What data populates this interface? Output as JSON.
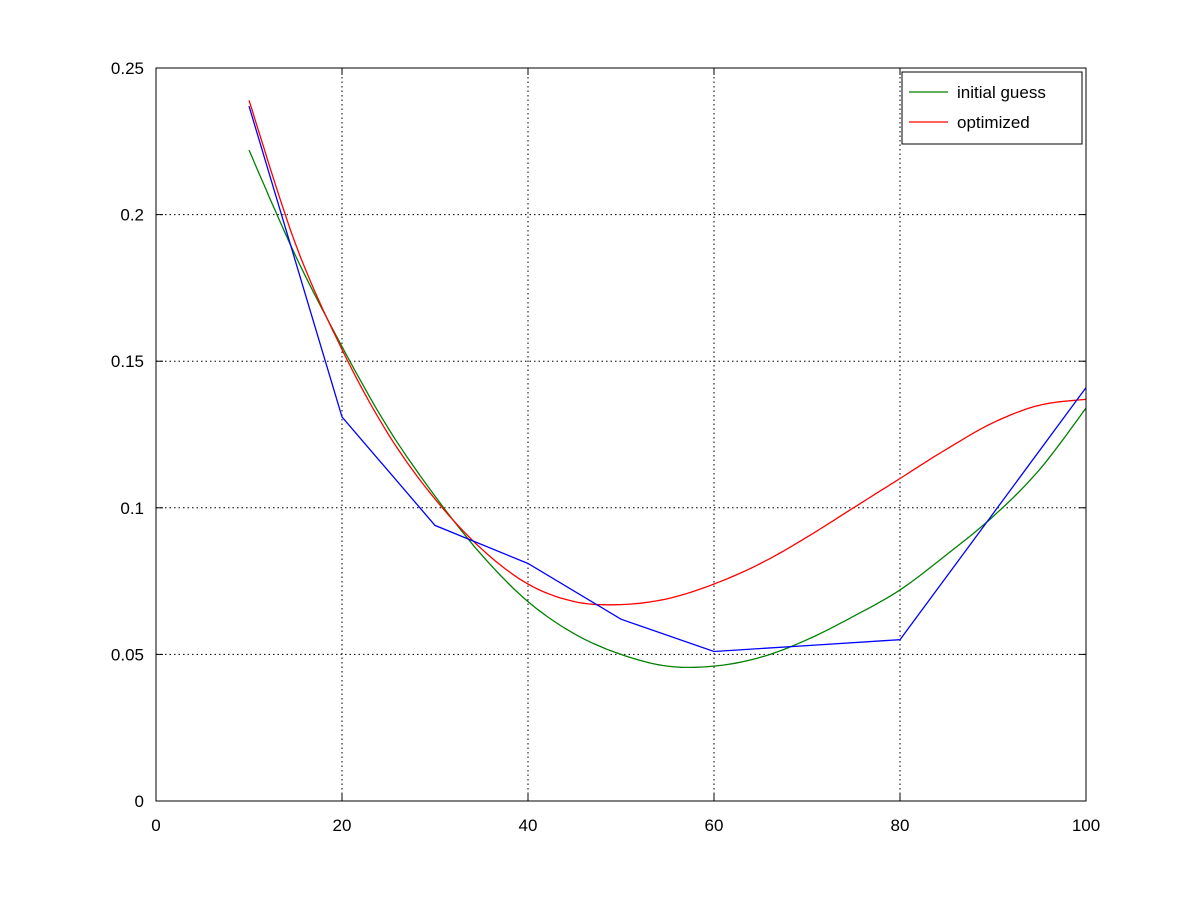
{
  "chart_data": {
    "type": "line",
    "xlim": [
      0,
      100
    ],
    "ylim": [
      0,
      0.25
    ],
    "x_ticks": [
      0,
      20,
      40,
      60,
      80,
      100
    ],
    "y_ticks": [
      0,
      0.05,
      0.1,
      0.15,
      0.2,
      0.25
    ],
    "x_tick_labels": [
      "0",
      "20",
      "40",
      "60",
      "80",
      "100"
    ],
    "y_tick_labels": [
      "0",
      "0.05",
      "0.1",
      "0.15",
      "0.2",
      "0.25"
    ],
    "grid": true,
    "legend_position": "top-right",
    "series": [
      {
        "name": "initial guess",
        "color": "#008000",
        "x": [
          10,
          15,
          20,
          25,
          30,
          35,
          40,
          45,
          50,
          55,
          60,
          65,
          70,
          75,
          80,
          85,
          90,
          95,
          100
        ],
        "y": [
          0.222,
          0.186,
          0.155,
          0.127,
          0.104,
          0.084,
          0.068,
          0.057,
          0.05,
          0.046,
          0.046,
          0.049,
          0.055,
          0.063,
          0.072,
          0.084,
          0.097,
          0.113,
          0.134
        ]
      },
      {
        "name": "optimized",
        "color": "#ff0000",
        "x": [
          10,
          15,
          20,
          25,
          30,
          35,
          40,
          45,
          50,
          55,
          60,
          65,
          70,
          75,
          80,
          85,
          90,
          95,
          100
        ],
        "y": [
          0.239,
          0.19,
          0.154,
          0.125,
          0.103,
          0.086,
          0.074,
          0.068,
          0.067,
          0.069,
          0.074,
          0.081,
          0.09,
          0.1,
          0.11,
          0.12,
          0.129,
          0.135,
          0.137
        ]
      },
      {
        "color": "#0000ff",
        "x": [
          10,
          20,
          30,
          40,
          50,
          60,
          70,
          80,
          90,
          100
        ],
        "y": [
          0.237,
          0.131,
          0.094,
          0.081,
          0.062,
          0.051,
          0.053,
          0.055,
          0.098,
          0.141
        ]
      }
    ]
  }
}
